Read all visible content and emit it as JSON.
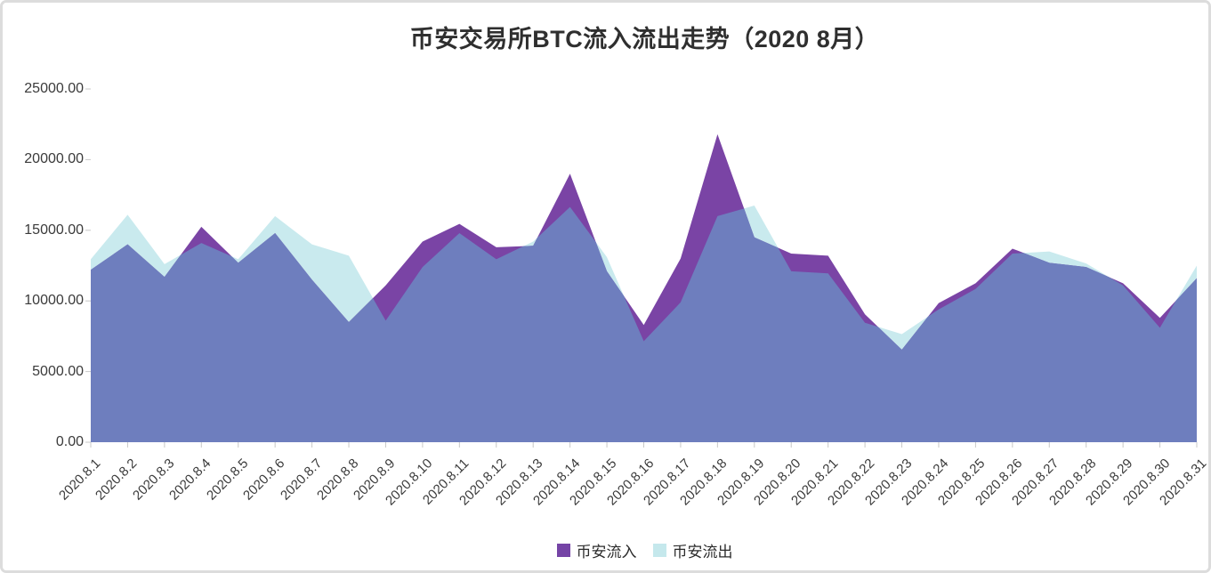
{
  "card": {
    "background": "#ffffff",
    "border_color": "#dcdcdc"
  },
  "title": {
    "text": "币安交易所BTC流入流出走势（2020 8月）",
    "color": "#2f2f2f"
  },
  "chart_data": {
    "type": "area",
    "overlap_mode": "overlay-unstacked",
    "title": "币安交易所BTC流入流出走势（2020 8月）",
    "xlabel": "",
    "ylabel": "",
    "ylim": [
      0,
      25000
    ],
    "y_ticks": [
      "0.00",
      "5000.00",
      "10000.00",
      "15000.00",
      "20000.00",
      "25000.00"
    ],
    "grid": false,
    "legend_position": "bottom",
    "categories": [
      "2020.8.1",
      "2020.8.2",
      "2020.8.3",
      "2020.8.4",
      "2020.8.5",
      "2020.8.6",
      "2020.8.7",
      "2020.8.8",
      "2020.8.9",
      "2020.8.10",
      "2020.8.11",
      "2020.8.12",
      "2020.8.13",
      "2020.8.14",
      "2020.8.15",
      "2020.8.16",
      "2020.8.17",
      "2020.8.18",
      "2020.8.19",
      "2020.8.20",
      "2020.8.21",
      "2020.8.22",
      "2020.8.23",
      "2020.8.24",
      "2020.8.25",
      "2020.8.26",
      "2020.8.27",
      "2020.8.28",
      "2020.8.29",
      "2020.8.30",
      "2020.8.31"
    ],
    "series": [
      {
        "name": "币安流入",
        "color": "#7a44a5",
        "legend_color": "#7544a6",
        "values": [
          12200,
          14000,
          11700,
          15250,
          12700,
          14800,
          11500,
          8500,
          11100,
          14200,
          15450,
          13800,
          13900,
          19000,
          12100,
          8300,
          13000,
          21800,
          14500,
          13350,
          13200,
          9050,
          6550,
          9850,
          11250,
          13700,
          12700,
          12400,
          11250,
          8800,
          11600
        ]
      },
      {
        "name": "币安流出",
        "color": "#c9eaee",
        "legend_color": "#c5e8ec",
        "values": [
          12950,
          16100,
          12600,
          14100,
          12950,
          16000,
          14000,
          13200,
          8600,
          12400,
          14800,
          12950,
          14200,
          16650,
          13100,
          7150,
          9900,
          16000,
          16750,
          12100,
          11950,
          8450,
          7650,
          9400,
          10850,
          13350,
          13500,
          12650,
          11100,
          8100,
          12500
        ]
      }
    ],
    "overlap_color": "#6e7ebe"
  },
  "axes": {
    "tick_color": "#c8c8c8",
    "label_color": "#3a3a3a"
  }
}
